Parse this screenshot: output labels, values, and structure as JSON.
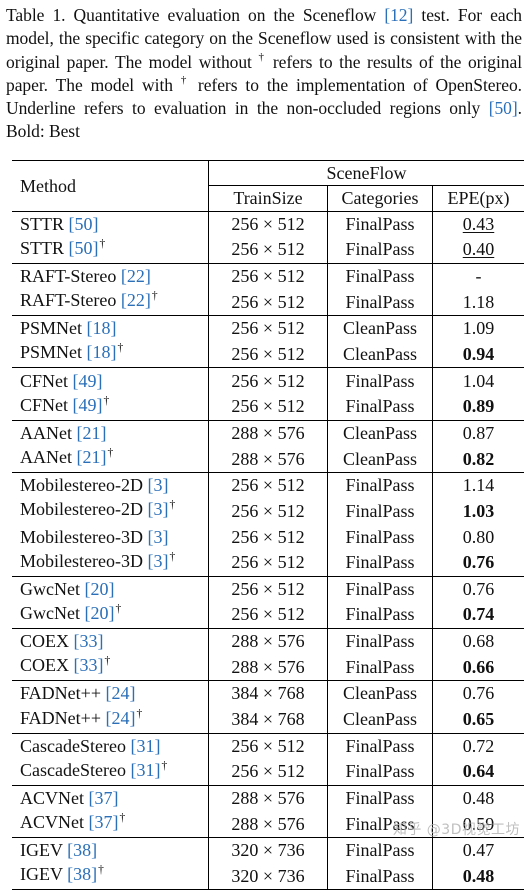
{
  "caption": {
    "part1": "Table 1. Quantitative evaluation on the Sceneflow ",
    "ref1": "[12]",
    "part2": " test. For each model, the specific category on the Sceneflow used is consistent with the original paper. The model without ",
    "dagger1": "†",
    "part3": " refers to the results of the original paper. The model with ",
    "dagger2": "†",
    "part4": " refers to the implementation of OpenStereo. Underline refers to evaluation in the non-occluded regions only ",
    "ref2": "[50]",
    "part5": ". Bold: Best"
  },
  "table": {
    "header_method": "Method",
    "header_group": "SceneFlow",
    "header_trainsize": "TrainSize",
    "header_categories": "Categories",
    "header_epe": "EPE(px)",
    "rows": [
      {
        "name": "STTR",
        "ref": "[50]",
        "dagger": "",
        "train": "256 × 512",
        "cat": "FinalPass",
        "epe": "0.43",
        "group_start": true,
        "best": false,
        "under": true
      },
      {
        "name": "STTR",
        "ref": "[50]",
        "dagger": "†",
        "train": "256 × 512",
        "cat": "FinalPass",
        "epe": "0.40",
        "group_start": false,
        "best": false,
        "under": true
      },
      {
        "name": "RAFT-Stereo",
        "ref": "[22]",
        "dagger": "",
        "train": "256 × 512",
        "cat": "FinalPass",
        "epe": "-",
        "group_start": true,
        "best": false,
        "under": false
      },
      {
        "name": "RAFT-Stereo",
        "ref": "[22]",
        "dagger": "†",
        "train": "256 × 512",
        "cat": "FinalPass",
        "epe": "1.18",
        "group_start": false,
        "best": false,
        "under": false
      },
      {
        "name": "PSMNet",
        "ref": "[18]",
        "dagger": "",
        "train": "256 × 512",
        "cat": "CleanPass",
        "epe": "1.09",
        "group_start": true,
        "best": false,
        "under": false
      },
      {
        "name": "PSMNet",
        "ref": "[18]",
        "dagger": "†",
        "train": "256 × 512",
        "cat": "CleanPass",
        "epe": "0.94",
        "group_start": false,
        "best": true,
        "under": false
      },
      {
        "name": "CFNet",
        "ref": "[49]",
        "dagger": "",
        "train": "256 × 512",
        "cat": "FinalPass",
        "epe": "1.04",
        "group_start": true,
        "best": false,
        "under": false
      },
      {
        "name": "CFNet",
        "ref": "[49]",
        "dagger": "†",
        "train": "256 × 512",
        "cat": "FinalPass",
        "epe": "0.89",
        "group_start": false,
        "best": true,
        "under": false
      },
      {
        "name": "AANet",
        "ref": "[21]",
        "dagger": "",
        "train": "288 × 576",
        "cat": "CleanPass",
        "epe": "0.87",
        "group_start": true,
        "best": false,
        "under": false
      },
      {
        "name": "AANet",
        "ref": "[21]",
        "dagger": "†",
        "train": "288 × 576",
        "cat": "CleanPass",
        "epe": "0.82",
        "group_start": false,
        "best": true,
        "under": false
      },
      {
        "name": "Mobilestereo-2D",
        "ref": "[3]",
        "dagger": "",
        "train": "256 × 512",
        "cat": "FinalPass",
        "epe": "1.14",
        "group_start": true,
        "best": false,
        "under": false
      },
      {
        "name": "Mobilestereo-2D",
        "ref": "[3]",
        "dagger": "†",
        "train": "256 × 512",
        "cat": "FinalPass",
        "epe": "1.03",
        "group_start": false,
        "best": true,
        "under": false
      },
      {
        "name": "Mobilestereo-3D",
        "ref": "[3]",
        "dagger": "",
        "train": "256 × 512",
        "cat": "FinalPass",
        "epe": "0.80",
        "group_start": false,
        "best": false,
        "under": false
      },
      {
        "name": "Mobilestereo-3D",
        "ref": "[3]",
        "dagger": "†",
        "train": "256 × 512",
        "cat": "FinalPass",
        "epe": "0.76",
        "group_start": false,
        "best": true,
        "under": false
      },
      {
        "name": "GwcNet",
        "ref": "[20]",
        "dagger": "",
        "train": "256 × 512",
        "cat": "FinalPass",
        "epe": "0.76",
        "group_start": true,
        "best": false,
        "under": false
      },
      {
        "name": "GwcNet",
        "ref": "[20]",
        "dagger": "†",
        "train": "256 × 512",
        "cat": "FinalPass",
        "epe": "0.74",
        "group_start": false,
        "best": true,
        "under": false
      },
      {
        "name": "COEX",
        "ref": "[33]",
        "dagger": "",
        "train": "288 × 576",
        "cat": "FinalPass",
        "epe": "0.68",
        "group_start": true,
        "best": false,
        "under": false
      },
      {
        "name": "COEX",
        "ref": "[33]",
        "dagger": "†",
        "train": "288 × 576",
        "cat": "FinalPass",
        "epe": "0.66",
        "group_start": false,
        "best": true,
        "under": false
      },
      {
        "name": "FADNet++",
        "ref": "[24]",
        "dagger": "",
        "train": "384 × 768",
        "cat": "CleanPass",
        "epe": "0.76",
        "group_start": true,
        "best": false,
        "under": false
      },
      {
        "name": "FADNet++",
        "ref": "[24]",
        "dagger": "†",
        "train": "384 × 768",
        "cat": "CleanPass",
        "epe": "0.65",
        "group_start": false,
        "best": true,
        "under": false
      },
      {
        "name": "CascadeStereo",
        "ref": "[31]",
        "dagger": "",
        "train": "256 × 512",
        "cat": "FinalPass",
        "epe": "0.72",
        "group_start": true,
        "best": false,
        "under": false
      },
      {
        "name": "CascadeStereo",
        "ref": "[31]",
        "dagger": "†",
        "train": "256 × 512",
        "cat": "FinalPass",
        "epe": "0.64",
        "group_start": false,
        "best": true,
        "under": false
      },
      {
        "name": "ACVNet",
        "ref": "[37]",
        "dagger": "",
        "train": "288 × 576",
        "cat": "FinalPass",
        "epe": "0.48",
        "group_start": true,
        "best": false,
        "under": false
      },
      {
        "name": "ACVNet",
        "ref": "[37]",
        "dagger": "†",
        "train": "288 × 576",
        "cat": "FinalPass",
        "epe": "0.59",
        "group_start": false,
        "best": false,
        "under": false
      },
      {
        "name": "IGEV",
        "ref": "[38]",
        "dagger": "",
        "train": "320 × 736",
        "cat": "FinalPass",
        "epe": "0.47",
        "group_start": true,
        "best": false,
        "under": false
      },
      {
        "name": "IGEV",
        "ref": "[38]",
        "dagger": "†",
        "train": "320 × 736",
        "cat": "FinalPass",
        "epe": "0.48",
        "group_start": false,
        "best": true,
        "under": false
      }
    ]
  },
  "watermark": "知乎 @3D视觉工坊",
  "colors": {
    "citation": "#2a6fb8",
    "text": "#111111",
    "watermark": "#b4b4b4"
  }
}
